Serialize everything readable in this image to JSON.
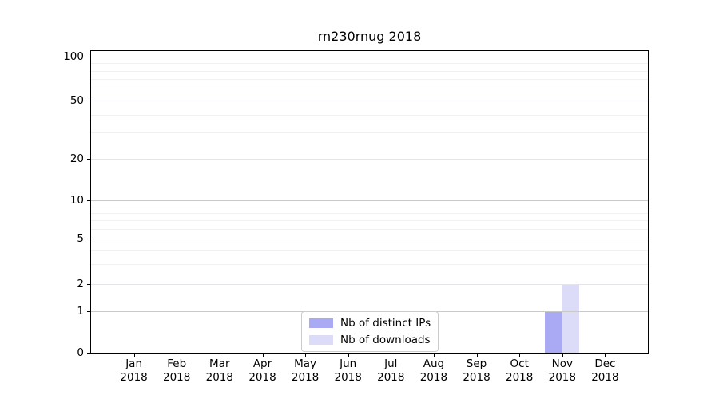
{
  "chart_data": {
    "type": "bar",
    "title": "rn230rnug 2018",
    "grid": true,
    "x_axis": {
      "categories": [
        {
          "month": "Jan",
          "year": "2018"
        },
        {
          "month": "Feb",
          "year": "2018"
        },
        {
          "month": "Mar",
          "year": "2018"
        },
        {
          "month": "Apr",
          "year": "2018"
        },
        {
          "month": "May",
          "year": "2018"
        },
        {
          "month": "Jun",
          "year": "2018"
        },
        {
          "month": "Jul",
          "year": "2018"
        },
        {
          "month": "Aug",
          "year": "2018"
        },
        {
          "month": "Sep",
          "year": "2018"
        },
        {
          "month": "Oct",
          "year": "2018"
        },
        {
          "month": "Nov",
          "year": "2018"
        },
        {
          "month": "Dec",
          "year": "2018"
        }
      ]
    },
    "y_axis": {
      "scale": "symlog",
      "ticks": [
        0,
        1,
        2,
        5,
        10,
        20,
        50,
        100
      ],
      "minor_ticks": [
        3,
        4,
        6,
        7,
        8,
        9,
        30,
        40,
        60,
        70,
        80,
        90
      ],
      "range": [
        0,
        110
      ]
    },
    "series": [
      {
        "name": "Nb of distinct IPs",
        "color": "#a9a9f4",
        "values": [
          0,
          0,
          0,
          0,
          0,
          0,
          0,
          0,
          0,
          0,
          1,
          0
        ]
      },
      {
        "name": "Nb of downloads",
        "color": "#dcdcf8",
        "values": [
          0,
          0,
          0,
          0,
          0,
          0,
          0,
          0,
          0,
          0,
          2,
          0
        ]
      }
    ],
    "legend": {
      "position": "lower-center",
      "entries": [
        "Nb of distinct IPs",
        "Nb of downloads"
      ]
    }
  },
  "colors": {
    "background": "#ffffff",
    "spine": "#000000",
    "grid_major": "#c9c9c9",
    "grid_mid": "#e4e4ea",
    "grid_minor": "#f1f1f1",
    "legend_border": "#cccccc"
  }
}
